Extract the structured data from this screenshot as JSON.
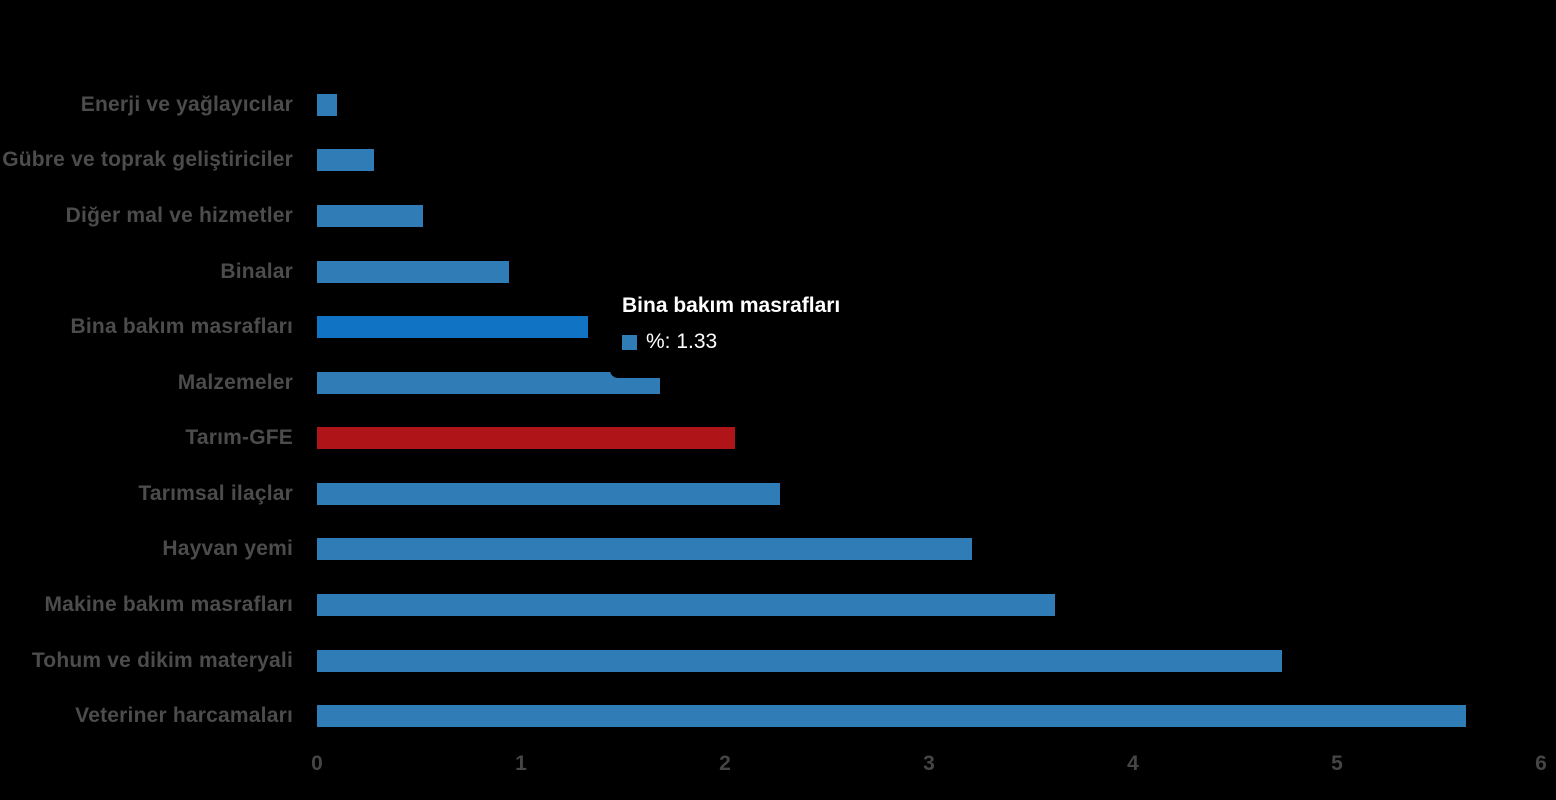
{
  "background": "#000000",
  "chart_data": {
    "type": "bar",
    "orientation": "horizontal",
    "title": "",
    "xlabel": "",
    "ylabel": "",
    "categories": [
      "Enerji  ve yağlayıcılar",
      "Gübre ve toprak geliştiriciler",
      "Diğer mal ve hizmetler",
      "Binalar",
      "Bina bakım masrafları",
      "Malzemeler",
      "Tarım-GFE",
      "Tarımsal ilaçlar",
      "Hayvan yemi",
      "Makine bakım masrafları",
      "Tohum ve dikim materyali",
      "Veteriner harcamaları"
    ],
    "values": [
      0.1,
      0.28,
      0.52,
      0.94,
      1.33,
      1.68,
      2.05,
      2.27,
      3.21,
      3.62,
      4.73,
      5.63
    ],
    "series_name": "%",
    "xlim": [
      0,
      6
    ],
    "x_ticks": [
      "0",
      "1",
      "2",
      "3",
      "4",
      "5",
      "6"
    ],
    "grid": false,
    "legend": false,
    "hovered_index": 4,
    "accent_index": 6,
    "colors": {
      "bar": "#2F7CB6",
      "bar_hover": "#1173C4",
      "accent_bar": "#AE1418",
      "category_label": "#4C4C4C",
      "axis_label": "#454545"
    }
  },
  "tooltip": {
    "title": "Bina bakım masrafları",
    "series_label": "%",
    "value": "1.33",
    "text": "%: 1.33",
    "swatch_color": "#2F7CB6",
    "text_color": "#FFFFFF",
    "background": "#000000"
  }
}
